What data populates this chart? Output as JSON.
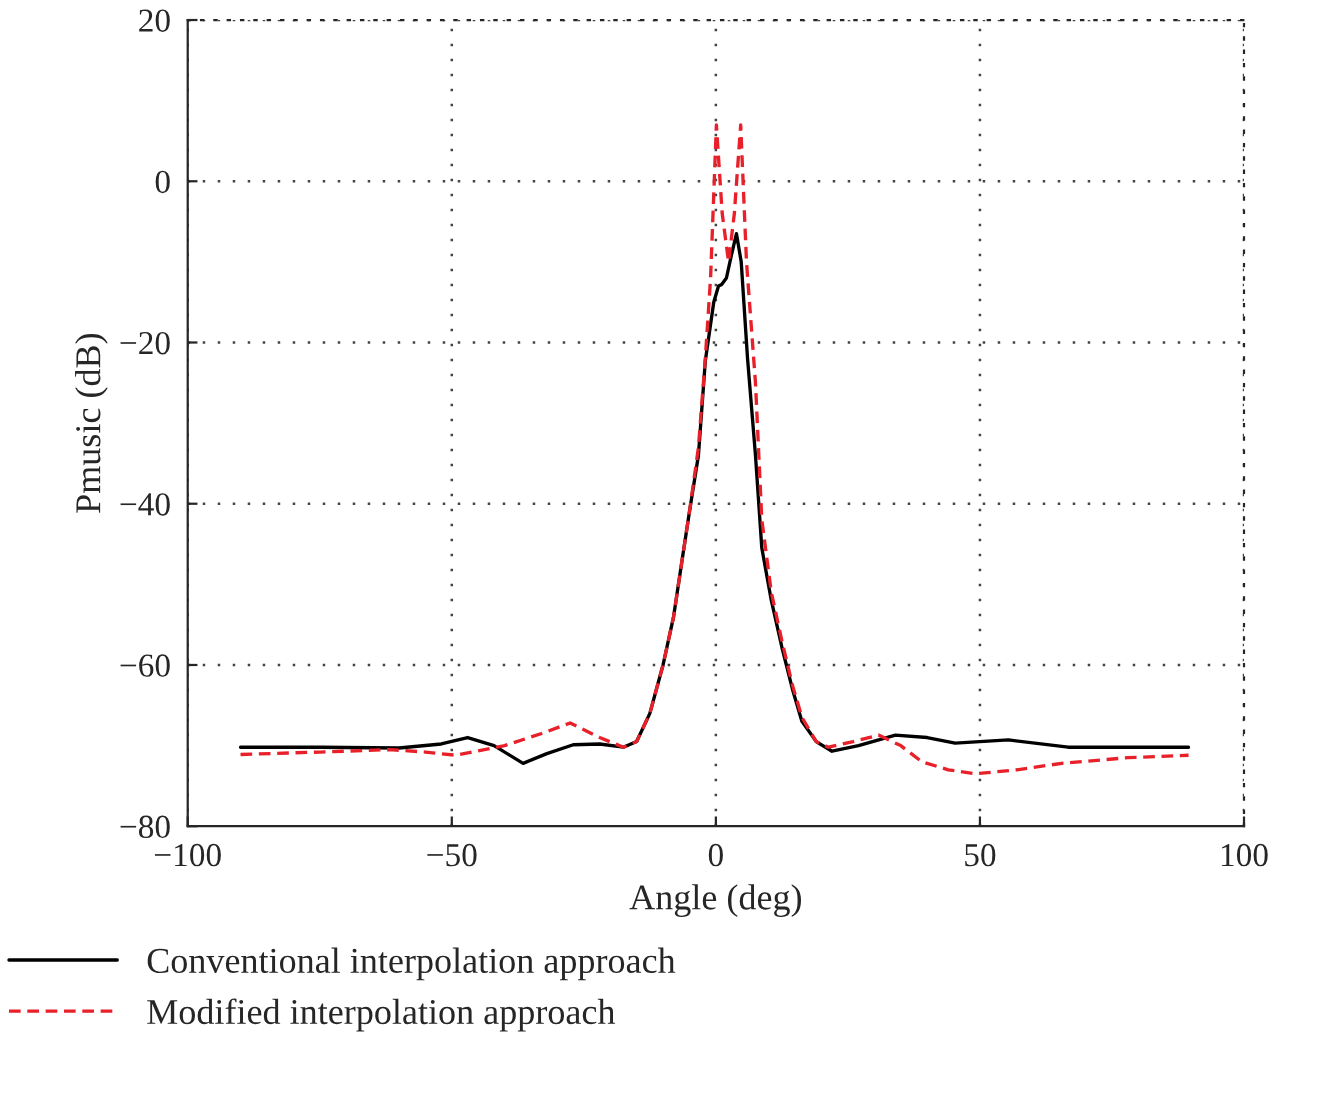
{
  "chart_data": {
    "type": "line",
    "xlabel": "Angle (deg)",
    "ylabel": "Pmusic (dB)",
    "xlim": [
      -100,
      100
    ],
    "ylim": [
      -80,
      20
    ],
    "xticks": [
      -100,
      -50,
      0,
      50,
      100
    ],
    "yticks": [
      -80,
      -60,
      -40,
      -20,
      0,
      20
    ],
    "grid": true,
    "legend": "bottom",
    "series": [
      {
        "name": "Conventional interpolation approach",
        "color": "#000000",
        "line_style": "solid",
        "x": [
          -90,
          -75,
          -60,
          -52,
          -47,
          -42,
          -36.5,
          -32,
          -27,
          -22,
          -17.5,
          -15,
          -12.5,
          -10,
          -8,
          -6.4,
          -5,
          -3.3,
          -2,
          -0.4,
          0.5,
          1.1,
          2,
          3,
          3.9,
          4.8,
          6,
          7.5,
          8.7,
          10.5,
          12.5,
          14.5,
          16.3,
          19,
          22,
          27,
          34,
          40,
          45.3,
          55.4,
          66.7,
          80,
          89.5
        ],
        "values": [
          -70.2,
          -70.2,
          -70.3,
          -69.8,
          -69,
          -70,
          -72.2,
          -71,
          -69.9,
          -69.8,
          -70.2,
          -69.5,
          -66,
          -60,
          -54,
          -47,
          -41,
          -34,
          -22.3,
          -15,
          -13,
          -12.8,
          -12,
          -9,
          -6.5,
          -10,
          -22,
          -34,
          -45.5,
          -52,
          -57.8,
          -63,
          -67,
          -69.5,
          -70.7,
          -70,
          -68.7,
          -69,
          -69.7,
          -69.3,
          -70.2,
          -70.2,
          -70.2
        ]
      },
      {
        "name": "Modified interpolation approach",
        "color": "#e8202a",
        "line_style": "dashed",
        "x": [
          -90,
          -75,
          -61.7,
          -55,
          -49.2,
          -40,
          -33,
          -27.6,
          -22,
          -17.5,
          -15,
          -12.5,
          -10,
          -8,
          -6.4,
          -5,
          -3.3,
          -2,
          -1,
          0.1,
          1.2,
          2.4,
          3.5,
          4.7,
          5.8,
          7.5,
          8.7,
          10.5,
          12.5,
          14.5,
          16.3,
          19,
          21.3,
          26,
          30.8,
          35,
          39,
          44,
          49.1,
          57,
          65.5,
          78,
          89.5
        ],
        "values": [
          -71.1,
          -70.8,
          -70.5,
          -70.8,
          -71.2,
          -70,
          -68.5,
          -67.2,
          -69,
          -70.2,
          -69.5,
          -66,
          -60,
          -54,
          -47,
          -41,
          -33,
          -22,
          -12,
          7,
          -4,
          -10,
          -4,
          7,
          -10,
          -25,
          -42,
          -51,
          -57,
          -62.5,
          -66.5,
          -69.5,
          -70.2,
          -69.5,
          -68.7,
          -70,
          -72,
          -73,
          -73.5,
          -73,
          -72.2,
          -71.5,
          -71.2
        ]
      }
    ]
  }
}
